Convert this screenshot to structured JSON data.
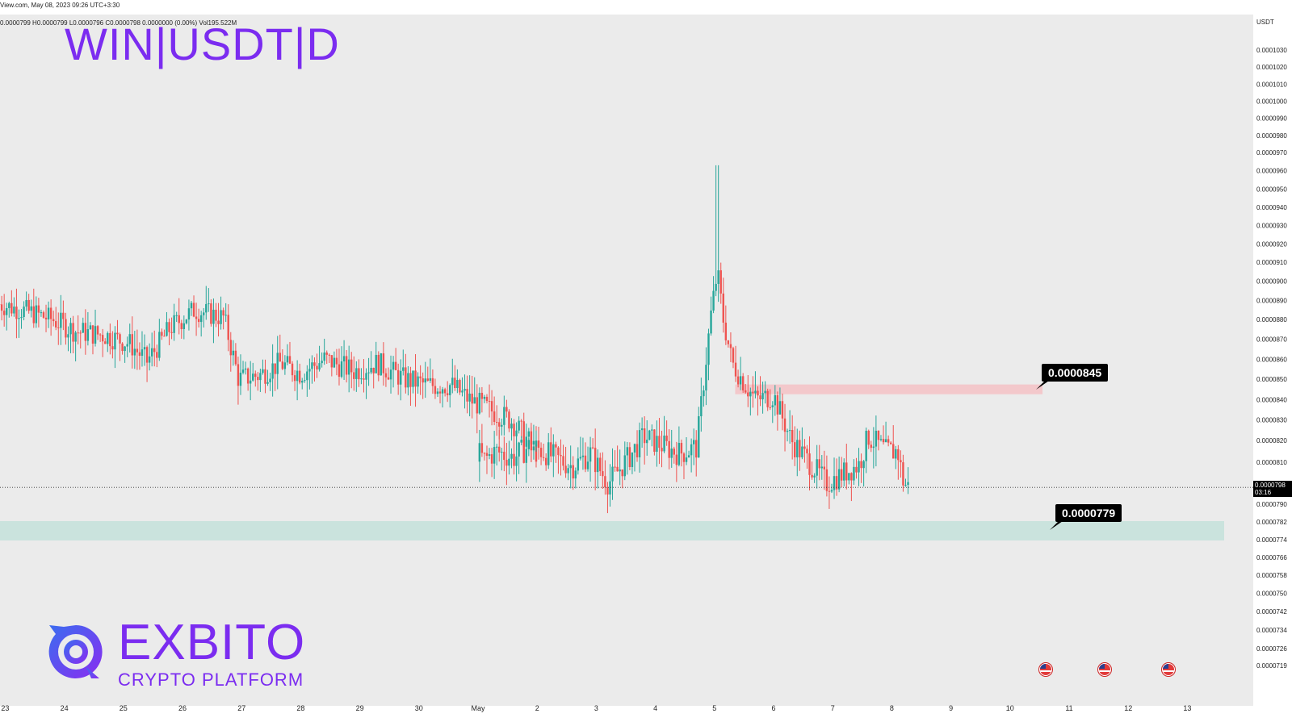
{
  "header": {
    "source_line": "View.com, May 08, 2023 09:26 UTC+3:30",
    "ohlc_line": "0.0000799  H0.0000799  L0.0000796  C0.0000798  0.0000000 (0.00%)  Vol195.522M"
  },
  "symbol_title": "WIN|USDT|D",
  "currency": "USDT",
  "current_price": {
    "value": "0.0000798",
    "countdown": "03:16"
  },
  "brand": {
    "name": "EXBITO",
    "tagline": "CRYPTO PLATFORM"
  },
  "callouts": [
    {
      "label": "0.0000845",
      "role": "resistance"
    },
    {
      "label": "0.0000779",
      "role": "support"
    }
  ],
  "colors": {
    "accent": "#7b2cf0",
    "up": "#26a69a",
    "down": "#ef5350",
    "resistance_zone": "#f4c4c8",
    "support_zone": "#c6e2dc"
  },
  "chart_data": {
    "type": "candlestick",
    "title": "WIN|USDT|D",
    "y_unit": "USDT",
    "y_ticks": [
      {
        "label": "0.0001030",
        "value": 0.000103
      },
      {
        "label": "0.0001020",
        "value": 0.000102
      },
      {
        "label": "0.0001010",
        "value": 0.000101
      },
      {
        "label": "0.0001000",
        "value": 0.0001
      },
      {
        "label": "0.0000990",
        "value": 9.9e-05
      },
      {
        "label": "0.0000980",
        "value": 9.8e-05
      },
      {
        "label": "0.0000970",
        "value": 9.7e-05
      },
      {
        "label": "0.0000960",
        "value": 9.6e-05
      },
      {
        "label": "0.0000950",
        "value": 9.5e-05
      },
      {
        "label": "0.0000940",
        "value": 9.4e-05
      },
      {
        "label": "0.0000930",
        "value": 9.3e-05
      },
      {
        "label": "0.0000920",
        "value": 9.2e-05
      },
      {
        "label": "0.0000910",
        "value": 9.1e-05
      },
      {
        "label": "0.0000900",
        "value": 9e-05
      },
      {
        "label": "0.0000890",
        "value": 8.9e-05
      },
      {
        "label": "0.0000880",
        "value": 8.8e-05
      },
      {
        "label": "0.0000870",
        "value": 8.7e-05
      },
      {
        "label": "0.0000860",
        "value": 8.6e-05
      },
      {
        "label": "0.0000850",
        "value": 8.5e-05
      },
      {
        "label": "0.0000840",
        "value": 8.4e-05
      },
      {
        "label": "0.0000830",
        "value": 8.3e-05
      },
      {
        "label": "0.0000820",
        "value": 8.2e-05
      },
      {
        "label": "0.0000810",
        "value": 8.1e-05
      },
      {
        "label": "0.0000790",
        "value": 7.9e-05
      },
      {
        "label": "0.0000782",
        "value": 7.82e-05
      },
      {
        "label": "0.0000774",
        "value": 7.74e-05
      },
      {
        "label": "0.0000766",
        "value": 7.66e-05
      },
      {
        "label": "0.0000758",
        "value": 7.58e-05
      },
      {
        "label": "0.0000750",
        "value": 7.5e-05
      },
      {
        "label": "0.0000742",
        "value": 7.42e-05
      },
      {
        "label": "0.0000734",
        "value": 7.34e-05
      },
      {
        "label": "0.0000726",
        "value": 7.26e-05
      },
      {
        "label": "0.0000719",
        "value": 7.19e-05
      }
    ],
    "x_ticks": [
      "23",
      "24",
      "25",
      "26",
      "27",
      "28",
      "29",
      "30",
      "May",
      "2",
      "3",
      "4",
      "5",
      "6",
      "7",
      "8",
      "9",
      "10",
      "11",
      "12",
      "13"
    ],
    "x_tick_days": [
      -8,
      -7,
      -6,
      -5,
      -4,
      -3,
      -2,
      -1,
      1,
      2,
      3,
      4,
      5,
      6,
      7,
      8,
      9,
      10,
      11,
      12,
      13
    ],
    "x_range_days": [
      -8.1,
      13.7
    ],
    "zones": [
      {
        "label": "0.0000845",
        "low": 8.43e-05,
        "high": 8.47e-05,
        "from_day": 5.35,
        "to_day": 10.55,
        "color": "#f4c4c8"
      },
      {
        "label": "0.0000779",
        "low": 7.74e-05,
        "high": 7.82e-05,
        "from_day": -8.1,
        "to_day": 13.7,
        "color": "#c6e2dc"
      }
    ],
    "current_price_line": 7.98e-05,
    "price_path_days": [
      -8.1,
      -7.6,
      -7.2,
      -6.8,
      -6.3,
      -5.9,
      -5.6,
      -5.2,
      -4.8,
      -4.3,
      -4.05,
      -3.7,
      -3.35,
      -3.0,
      -2.6,
      -2.1,
      -1.7,
      -1.25,
      -0.85,
      -0.45,
      -0.15,
      0.55,
      0.9,
      1.1,
      1.3,
      1.6,
      1.9,
      2.3,
      2.6,
      2.9,
      3.2,
      3.6,
      3.8,
      4.1,
      4.4,
      4.7,
      4.95,
      5.05,
      5.15,
      5.3,
      5.55,
      5.7,
      6.0,
      6.3,
      6.6,
      6.9,
      7.2,
      7.45,
      7.6,
      7.9,
      8.1,
      8.2,
      8.3
    ],
    "price_path_values": [
      8.88e-05,
      8.84e-05,
      8.8e-05,
      8.74e-05,
      8.72e-05,
      8.68e-05,
      8.59e-05,
      8.76e-05,
      8.85e-05,
      8.81e-05,
      8.5e-05,
      8.52e-05,
      8.58e-05,
      8.53e-05,
      8.6e-05,
      8.54e-05,
      8.58e-05,
      8.5e-05,
      8.47e-05,
      8.47e-05,
      8.4e-05,
      8.3e-05,
      8.18e-05,
      8.11e-05,
      8.15e-05,
      8.12e-05,
      8.18e-05,
      8.12e-05,
      8.08e-05,
      8.14e-05,
      8e-05,
      8.14e-05,
      8.22e-05,
      8.18e-05,
      8.14e-05,
      8.17e-05,
      8.85e-05,
      9.05e-05,
      8.8e-05,
      8.58e-05,
      8.46e-05,
      8.4e-05,
      8.42e-05,
      8.2e-05,
      8.1e-05,
      8e-05,
      8.05e-05,
      8.09e-05,
      8.22e-05,
      8.15e-05,
      8.15e-05,
      8e-05,
      7.98e-05
    ],
    "spike": {
      "day": 5.05,
      "high": 9.63e-05
    }
  }
}
